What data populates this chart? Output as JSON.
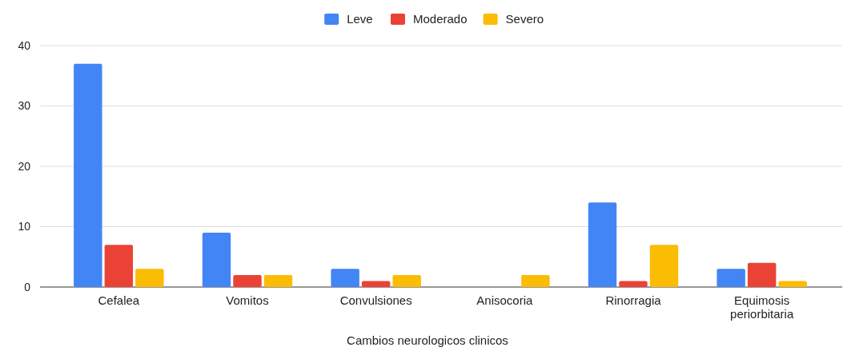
{
  "chart_data": {
    "type": "bar",
    "xlabel": "Cambios neurologicos clinicos",
    "categories": [
      "Cefalea",
      "Vomitos",
      "Convulsiones",
      "Anisocoria",
      "Rinorragia",
      "Equimosis periorbitaria"
    ],
    "series": [
      {
        "name": "Leve",
        "color": "#4285f4",
        "values": [
          37,
          9,
          3,
          0,
          14,
          3
        ]
      },
      {
        "name": "Moderado",
        "color": "#ea4335",
        "values": [
          7,
          2,
          1,
          0,
          1,
          4
        ]
      },
      {
        "name": "Severo",
        "color": "#fbbc04",
        "values": [
          3,
          2,
          2,
          2,
          7,
          1
        ]
      }
    ],
    "ylim": [
      0,
      40
    ],
    "yticks": [
      0,
      10,
      20,
      30,
      40
    ],
    "grid": "y",
    "legend": "top"
  }
}
